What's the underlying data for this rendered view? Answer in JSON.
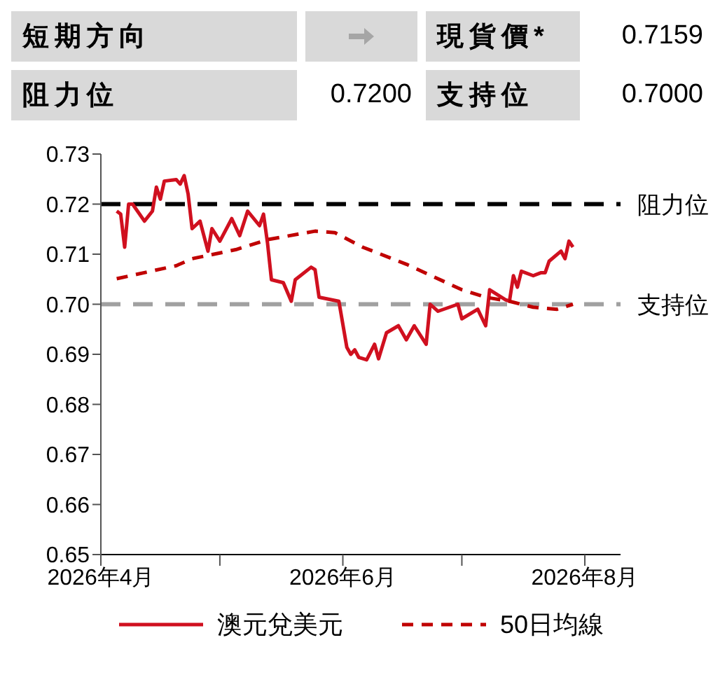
{
  "chart_data": {
    "type": "line",
    "annotations": [
      "短期方向",
      "現貨價*",
      "0.7159",
      "阻力位",
      "0.7200",
      "支持位",
      "0.7000"
    ],
    "series": [
      {
        "name": "澳元兌美元",
        "color": "#d0101f",
        "line_style": "solid",
        "x": [
          "2026-04-05",
          "2026-04-06",
          "2026-04-07",
          "2026-04-08",
          "2026-04-09",
          "2026-04-12",
          "2026-04-14",
          "2026-04-15",
          "2026-04-16",
          "2026-04-17",
          "2026-04-20",
          "2026-04-21",
          "2026-04-22",
          "2026-04-23",
          "2026-04-24",
          "2026-04-26",
          "2026-04-28",
          "2026-04-29",
          "2026-05-01",
          "2026-05-04",
          "2026-05-06",
          "2026-05-08",
          "2026-05-11",
          "2026-05-12",
          "2026-05-13",
          "2026-05-14",
          "2026-05-17",
          "2026-05-19",
          "2026-05-20",
          "2026-05-24",
          "2026-05-25",
          "2026-05-26",
          "2026-05-31",
          "2026-06-02",
          "2026-06-03",
          "2026-06-04",
          "2026-06-05",
          "2026-06-07",
          "2026-06-09",
          "2026-06-10",
          "2026-06-12",
          "2026-06-15",
          "2026-06-17",
          "2026-06-19",
          "2026-06-22",
          "2026-06-23",
          "2026-06-25",
          "2026-06-30",
          "2026-07-01",
          "2026-07-05",
          "2026-07-07",
          "2026-07-08",
          "2026-07-12",
          "2026-07-13",
          "2026-07-14",
          "2026-07-15",
          "2026-07-16",
          "2026-07-19",
          "2026-07-21",
          "2026-07-22",
          "2026-07-23",
          "2026-07-26",
          "2026-07-27",
          "2026-07-28",
          "2026-07-29"
        ],
        "values": [
          0.7186,
          0.718,
          0.7114,
          0.72,
          0.72,
          0.7166,
          0.7186,
          0.7234,
          0.721,
          0.7246,
          0.7249,
          0.724,
          0.7257,
          0.722,
          0.7151,
          0.7166,
          0.7106,
          0.7151,
          0.7126,
          0.7171,
          0.7137,
          0.7186,
          0.7157,
          0.718,
          0.7123,
          0.7049,
          0.7043,
          0.7006,
          0.7049,
          0.7074,
          0.7069,
          0.7014,
          0.7006,
          0.6914,
          0.69,
          0.6909,
          0.6894,
          0.6889,
          0.692,
          0.6891,
          0.6943,
          0.6957,
          0.6929,
          0.6957,
          0.692,
          0.7,
          0.6986,
          0.7,
          0.6971,
          0.699,
          0.6957,
          0.7029,
          0.7009,
          0.7006,
          0.7057,
          0.7034,
          0.7066,
          0.7057,
          0.7063,
          0.7063,
          0.7086,
          0.7106,
          0.7091,
          0.7126,
          0.7114
        ]
      },
      {
        "name": "50日均線",
        "color": "#c00000",
        "line_style": "dashed",
        "x": [
          "2026-04-05",
          "2026-04-20",
          "2026-04-24",
          "2026-05-05",
          "2026-05-13",
          "2026-05-25",
          "2026-05-30",
          "2026-06-06",
          "2026-06-17",
          "2026-07-01",
          "2026-07-07",
          "2026-07-13",
          "2026-07-19",
          "2026-07-25",
          "2026-07-29"
        ],
        "values": [
          0.7051,
          0.7077,
          0.7091,
          0.7109,
          0.7129,
          0.7146,
          0.7143,
          0.7114,
          0.708,
          0.7029,
          0.7014,
          0.7006,
          0.6994,
          0.699,
          0.7
        ]
      }
    ],
    "xlim": [
      "2026-04-01",
      "2026-08-10"
    ],
    "xticks": [
      {
        "value": "2026-04-01",
        "label": "2026年4月"
      },
      {
        "value": "2026-05-01",
        "label": null
      },
      {
        "value": "2026-06-01",
        "label": "2026年6月"
      },
      {
        "value": "2026-07-01",
        "label": null
      },
      {
        "value": "2026-08-01",
        "label": "2026年8月"
      }
    ],
    "ylim": [
      0.65,
      0.73
    ],
    "yticks": [
      0.65,
      0.66,
      0.67,
      0.68,
      0.69,
      {
        "value": 0.7,
        "label": "0.70"
      },
      0.71,
      0.72,
      0.73
    ],
    "ref_lines": [
      {
        "axis": "y",
        "value": 0.72,
        "label": "阻力位",
        "color": "#000000",
        "line_style": "dashed"
      },
      {
        "axis": "y",
        "value": 0.7,
        "label": "支持位",
        "color": "#a0a0a0",
        "line_style": "dashed"
      }
    ],
    "legend": "bottom",
    "marker": "none"
  }
}
